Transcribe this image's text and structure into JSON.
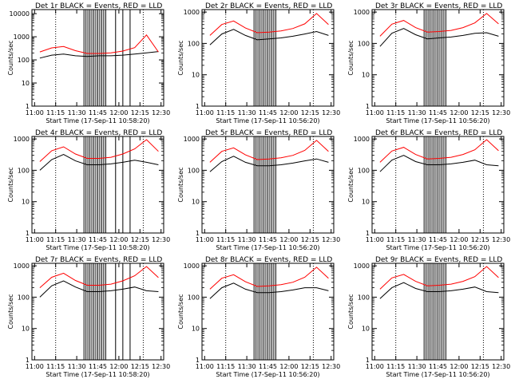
{
  "chart_data": [
    {
      "type": "line",
      "title": "Det 1r BLACK = Events, RED = LLD",
      "xlabel": "Start Time (17-Sep-11 10:58:20)",
      "ylabel": "Counts/sec",
      "xticks": [
        "11:00",
        "11:15",
        "11:30",
        "11:45",
        "12:00",
        "12:15",
        "12:30"
      ],
      "yticks": [
        "1",
        "10",
        "100",
        "1000",
        "10000"
      ],
      "ylim": [
        1,
        15000
      ],
      "series": [
        {
          "name": "Events",
          "color": "#000000",
          "values": [
            120,
            160,
            180,
            150,
            140,
            150,
            150,
            160,
            180,
            200,
            230
          ]
        },
        {
          "name": "LLD",
          "color": "#ff0000",
          "values": [
            220,
            330,
            380,
            250,
            190,
            190,
            200,
            240,
            340,
            1200,
            220
          ]
        }
      ]
    },
    {
      "type": "line",
      "title": "Det 2r BLACK = Events, RED = LLD",
      "xlabel": "Start Time (17-Sep-11 10:56:20)",
      "ylabel": "Counts/sec",
      "xticks": [
        "11:00",
        "11:15",
        "11:30",
        "11:45",
        "12:00",
        "12:15",
        "12:30"
      ],
      "yticks": [
        "1",
        "10",
        "100",
        "1000"
      ],
      "ylim": [
        1,
        1200
      ],
      "series": [
        {
          "name": "Events",
          "color": "#000000",
          "values": [
            90,
            200,
            280,
            180,
            130,
            140,
            150,
            170,
            200,
            240,
            180
          ]
        },
        {
          "name": "LLD",
          "color": "#ff0000",
          "values": [
            180,
            400,
            520,
            310,
            220,
            230,
            250,
            300,
            420,
            900,
            400
          ]
        }
      ]
    },
    {
      "type": "line",
      "title": "Det 3r BLACK = Events, RED = LLD",
      "xlabel": "Start Time (17-Sep-11 10:56:20)",
      "ylabel": "Counts/sec",
      "xticks": [
        "11:00",
        "11:15",
        "11:30",
        "11:45",
        "12:00",
        "12:15",
        "12:30"
      ],
      "yticks": [
        "1",
        "10",
        "100",
        "1000"
      ],
      "ylim": [
        1,
        1200
      ],
      "series": [
        {
          "name": "Events",
          "color": "#000000",
          "values": [
            80,
            210,
            300,
            190,
            140,
            150,
            160,
            180,
            210,
            220,
            170
          ]
        },
        {
          "name": "LLD",
          "color": "#ff0000",
          "values": [
            170,
            410,
            540,
            320,
            230,
            240,
            260,
            320,
            450,
            900,
            420
          ]
        }
      ]
    },
    {
      "type": "line",
      "title": "Det 4r BLACK = Events, RED = LLD",
      "xlabel": "Start Time (17-Sep-11 10:58:20)",
      "ylabel": "Counts/sec",
      "xticks": [
        "11:00",
        "11:15",
        "11:30",
        "11:45",
        "12:00",
        "12:15",
        "12:30"
      ],
      "yticks": [
        "1",
        "10",
        "100",
        "1000"
      ],
      "ylim": [
        1,
        1200
      ],
      "series": [
        {
          "name": "Events",
          "color": "#000000",
          "values": [
            100,
            220,
            320,
            200,
            150,
            150,
            160,
            180,
            210,
            180,
            150
          ]
        },
        {
          "name": "LLD",
          "color": "#ff0000",
          "values": [
            190,
            420,
            560,
            330,
            240,
            240,
            260,
            330,
            480,
            950,
            400
          ]
        }
      ]
    },
    {
      "type": "line",
      "title": "Det 5r BLACK = Events, RED = LLD",
      "xlabel": "Start Time (17-Sep-11 10:56:20)",
      "ylabel": "Counts/sec",
      "xticks": [
        "11:00",
        "11:15",
        "11:30",
        "11:45",
        "12:00",
        "12:15",
        "12:30"
      ],
      "yticks": [
        "1",
        "10",
        "100",
        "1000"
      ],
      "ylim": [
        1,
        1200
      ],
      "series": [
        {
          "name": "Events",
          "color": "#000000",
          "values": [
            90,
            190,
            280,
            180,
            140,
            140,
            150,
            170,
            200,
            230,
            180
          ]
        },
        {
          "name": "LLD",
          "color": "#ff0000",
          "values": [
            180,
            400,
            520,
            310,
            220,
            230,
            250,
            300,
            430,
            900,
            400
          ]
        }
      ]
    },
    {
      "type": "line",
      "title": "Det 6r BLACK = Events, RED = LLD",
      "xlabel": "Start Time (17-Sep-11 10:56:20)",
      "ylabel": "Counts/sec",
      "xticks": [
        "11:00",
        "11:15",
        "11:30",
        "11:45",
        "12:00",
        "12:15",
        "12:30"
      ],
      "yticks": [
        "1",
        "10",
        "100",
        "1000"
      ],
      "ylim": [
        1,
        1200
      ],
      "series": [
        {
          "name": "Events",
          "color": "#000000",
          "values": [
            90,
            210,
            300,
            190,
            150,
            150,
            160,
            180,
            210,
            150,
            140
          ]
        },
        {
          "name": "LLD",
          "color": "#ff0000",
          "values": [
            180,
            410,
            540,
            320,
            230,
            240,
            260,
            320,
            450,
            950,
            420
          ]
        }
      ]
    },
    {
      "type": "line",
      "title": "Det 7r BLACK = Events, RED = LLD",
      "xlabel": "Start Time (17-Sep-11 10:58:20)",
      "ylabel": "Counts/sec",
      "xticks": [
        "11:00",
        "11:15",
        "11:30",
        "11:45",
        "12:00",
        "12:15",
        "12:30"
      ],
      "yticks": [
        "1",
        "10",
        "100",
        "1000"
      ],
      "ylim": [
        1,
        1200
      ],
      "series": [
        {
          "name": "Events",
          "color": "#000000",
          "values": [
            100,
            230,
            330,
            210,
            150,
            150,
            160,
            180,
            210,
            160,
            150
          ]
        },
        {
          "name": "LLD",
          "color": "#ff0000",
          "values": [
            200,
            430,
            580,
            340,
            240,
            240,
            260,
            330,
            480,
            950,
            420
          ]
        }
      ]
    },
    {
      "type": "line",
      "title": "Det 8r BLACK = Events, RED = LLD",
      "xlabel": "Start Time (17-Sep-11 10:56:20)",
      "ylabel": "Counts/sec",
      "xticks": [
        "11:00",
        "11:15",
        "11:30",
        "11:45",
        "12:00",
        "12:15",
        "12:30"
      ],
      "yticks": [
        "1",
        "10",
        "100",
        "1000"
      ],
      "ylim": [
        1,
        1200
      ],
      "series": [
        {
          "name": "Events",
          "color": "#000000",
          "values": [
            90,
            200,
            280,
            180,
            140,
            140,
            150,
            170,
            200,
            200,
            160
          ]
        },
        {
          "name": "LLD",
          "color": "#ff0000",
          "values": [
            180,
            400,
            520,
            310,
            220,
            230,
            250,
            300,
            430,
            900,
            400
          ]
        }
      ]
    },
    {
      "type": "line",
      "title": "Det 9r BLACK = Events, RED = LLD",
      "xlabel": "Start Time (17-Sep-11 10:56:20)",
      "ylabel": "Counts/sec",
      "xticks": [
        "11:00",
        "11:15",
        "11:30",
        "11:45",
        "12:00",
        "12:15",
        "12:30"
      ],
      "yticks": [
        "1",
        "10",
        "100",
        "1000"
      ],
      "ylim": [
        1,
        1200
      ],
      "series": [
        {
          "name": "Events",
          "color": "#000000",
          "values": [
            90,
            200,
            290,
            190,
            150,
            150,
            160,
            180,
            210,
            150,
            140
          ]
        },
        {
          "name": "LLD",
          "color": "#ff0000",
          "values": [
            180,
            410,
            530,
            320,
            230,
            240,
            260,
            320,
            450,
            950,
            420
          ]
        }
      ]
    }
  ]
}
